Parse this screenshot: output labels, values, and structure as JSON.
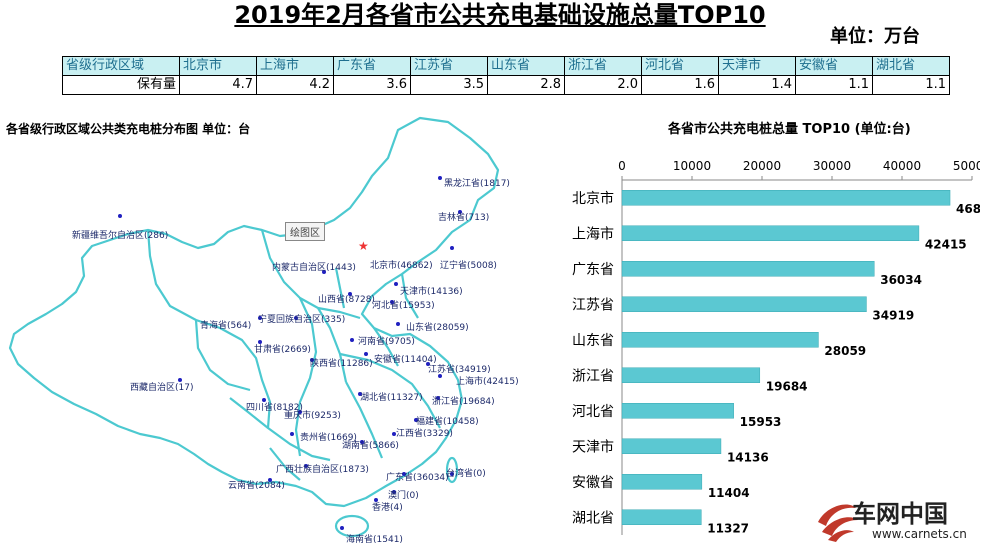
{
  "title": "2019年2月各省市公共充电基础设施总量TOP10",
  "unit": "单位：万台",
  "table": {
    "header_label": "省级行政区域",
    "row_label": "保有量",
    "regions": [
      "北京市",
      "上海市",
      "广东省",
      "江苏省",
      "山东省",
      "浙江省",
      "河北省",
      "天津市",
      "安徽省",
      "湖北省"
    ],
    "values": [
      "4.7",
      "4.2",
      "3.6",
      "3.5",
      "2.8",
      "2.0",
      "1.6",
      "1.4",
      "1.1",
      "1.1"
    ]
  },
  "map": {
    "title": "各省级行政区域公共类充电桩分布图  单位：台",
    "plot_area_tag": "绘图区",
    "labels": [
      "黑龙江省(1817)",
      "吉林省(713)",
      "新疆维吾尔自治区(286)",
      "内蒙古自治区(1443)",
      "北京市(46862)",
      "辽宁省(5008)",
      "天津市(14136)",
      "山西省(8728)",
      "河北省(15953)",
      "青海省(564)",
      "宁夏回族自治区(335)",
      "山东省(28059)",
      "甘肃省(2669)",
      "河南省(9705)",
      "陕西省(11286)",
      "安徽省(11404)",
      "江苏省(34919)",
      "上海市(42415)",
      "西藏自治区(17)",
      "湖北省(11327)",
      "浙江省(19684)",
      "四川省(8182)",
      "重庆市(9253)",
      "福建省(10458)",
      "贵州省(1669)",
      "江西省(3329)",
      "湖南省(5866)",
      "云南省(2084)",
      "广西壮族自治区(1873)",
      "广东省(36034)",
      "台湾省(0)",
      "澳门(0)",
      "香港(4)",
      "海南省(1541)"
    ]
  },
  "chart_data": {
    "type": "bar",
    "orientation": "horizontal",
    "title": "各省市公共充电桩总量 TOP10   (单位:台)",
    "categories": [
      "北京市",
      "上海市",
      "广东省",
      "江苏省",
      "山东省",
      "浙江省",
      "河北省",
      "天津市",
      "安徽省",
      "湖北省"
    ],
    "values": [
      46862,
      42415,
      36034,
      34919,
      28059,
      19684,
      15953,
      14136,
      11404,
      11327
    ],
    "xlim": [
      0,
      50000
    ],
    "xticks": [
      0,
      10000,
      20000,
      30000,
      40000,
      50000
    ],
    "axis_position": "top",
    "grid": false,
    "bar_color": "#5bc8d2"
  },
  "logo": {
    "name": "车网中国",
    "url": "www.carnets.cn"
  }
}
